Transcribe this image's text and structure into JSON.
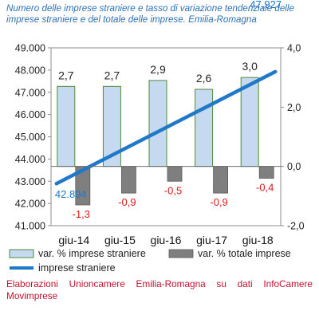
{
  "title": "Numero delle imprese straniere e tasso di variazione tendenziale delle imprese straniere e del totale delle imprese. Emilia-Romagna",
  "footer": "Elaborazioni Unioncamere Emilia-Romagna su dati InfoCamere Movimprese",
  "colors": {
    "title": "#2e72b8",
    "footer": "#c8102e",
    "bar_straniere": "#c5d9f1",
    "bar_straniere_border": "#4f8a3a",
    "bar_totale": "#7f7f7f",
    "line": "#1f78c8",
    "negative_label": "#e01a1a"
  },
  "chart_data": {
    "type": "bar-line-combo",
    "categories": [
      "giu-14",
      "giu-15",
      "giu-16",
      "giu-17",
      "giu-18"
    ],
    "series": [
      {
        "name": "var. % imprese straniere",
        "type": "bar",
        "axis": "right",
        "values": [
          2.7,
          2.7,
          2.9,
          2.6,
          3.0
        ],
        "labels": [
          "2,7",
          "2,7",
          "2,9",
          "2,6",
          "3,0"
        ]
      },
      {
        "name": "var. % totale imprese",
        "type": "bar",
        "axis": "right",
        "values": [
          -1.3,
          -0.9,
          -0.5,
          -0.9,
          -0.4
        ],
        "labels": [
          "-1,3",
          "-0,9",
          "-0,5",
          "-0,9",
          "-0,4"
        ]
      },
      {
        "name": "imprese straniere",
        "type": "line",
        "axis": "left",
        "values": [
          42894,
          null,
          null,
          null,
          47927
        ],
        "labels": [
          "42.894",
          "",
          "",
          "",
          "47.927"
        ]
      }
    ],
    "left_axis": {
      "min": 41000,
      "max": 49000,
      "ticks": [
        41000,
        42000,
        43000,
        44000,
        45000,
        46000,
        47000,
        48000,
        49000
      ],
      "tick_labels": [
        "41.000",
        "42.000",
        "43.000",
        "44.000",
        "45.000",
        "46.000",
        "47.000",
        "48.000",
        "49.000"
      ]
    },
    "right_axis": {
      "min": -2.0,
      "max": 4.0,
      "ticks": [
        -2.0,
        0.0,
        2.0,
        4.0
      ],
      "tick_labels": [
        "-2,0",
        "0,0",
        "2,0",
        "4,0"
      ]
    },
    "grid": false,
    "legend": "bottom"
  }
}
